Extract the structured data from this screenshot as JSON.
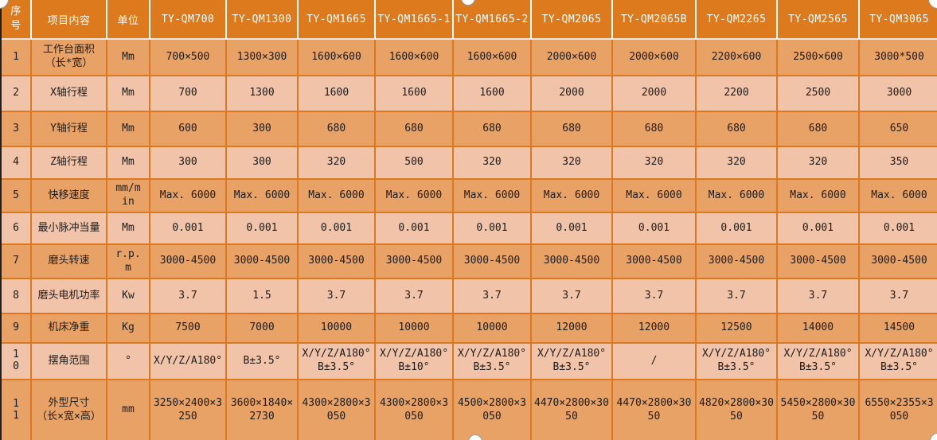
{
  "colors": {
    "header_bg": "#DD7A1E",
    "row_dark_bg": "#E8A266",
    "row_light_bg": "#F1C3A9",
    "grid_line": "#DC7820",
    "header_divider": "#E9E6E0",
    "outer_border": "#1F1F1F",
    "header_text": "#FFFFFF",
    "body_text": "#1C1C1C",
    "handle_fill": "#FFFFFF",
    "handle_border": "#999999"
  },
  "table": {
    "column_headers": {
      "index": "序号",
      "item": "项目内容",
      "unit": "单位"
    },
    "models": [
      "TY-QM700",
      "TY-QM1300",
      "TY-QM1665",
      "TY-QM1665-1",
      "TY-QM1665-2",
      "TY-QM2065",
      "TY-QM2065B",
      "TY-QM2265",
      "TY-QM2565",
      "TY-QM3065"
    ],
    "rows": [
      {
        "no": "1",
        "item": "工作台面积\n（长*宽）",
        "unit": "Mm",
        "values": [
          "700×500",
          "1300×300",
          "1600×600",
          "1600×600",
          "1600×600",
          "2000×600",
          "2000×600",
          "2200×600",
          "2500×600",
          "3000*500"
        ]
      },
      {
        "no": "2",
        "item": "X轴行程",
        "unit": "Mm",
        "values": [
          "700",
          "1300",
          "1600",
          "1600",
          "1600",
          "2000",
          "2000",
          "2200",
          "2500",
          "3000"
        ]
      },
      {
        "no": "3",
        "item": "Y轴行程",
        "unit": "Mm",
        "values": [
          "600",
          "300",
          "680",
          "680",
          "680",
          "680",
          "680",
          "680",
          "680",
          "650"
        ]
      },
      {
        "no": "4",
        "item": "Z轴行程",
        "unit": "Mm",
        "values": [
          "300",
          "300",
          "320",
          "500",
          "320",
          "320",
          "320",
          "320",
          "320",
          "350"
        ]
      },
      {
        "no": "5",
        "item": "快移速度",
        "unit": "mm/min",
        "values": [
          "Max. 6000",
          "Max. 6000",
          "Max. 6000",
          "Max. 6000",
          "Max. 6000",
          "Max. 6000",
          "Max. 6000",
          "Max. 6000",
          "Max. 6000",
          "Max. 6000"
        ]
      },
      {
        "no": "6",
        "item": "最小脉冲当量",
        "unit": "Mm",
        "values": [
          "0.001",
          "0.001",
          "0.001",
          "0.001",
          "0.001",
          "0.001",
          "0.001",
          "0.001",
          "0.001",
          "0.001"
        ]
      },
      {
        "no": "7",
        "item": "磨头转速",
        "unit": "r.p.m",
        "values": [
          "3000-4500",
          "3000-4500",
          "3000-4500",
          "3000-4500",
          "3000-4500",
          "3000-4500",
          "3000-4500",
          "3000-4500",
          "3000-4500",
          "3000-4500"
        ]
      },
      {
        "no": "8",
        "item": "磨头电机功率",
        "unit": "Kw",
        "values": [
          "3.7",
          "1.5",
          "3.7",
          "3.7",
          "3.7",
          "3.7",
          "3.7",
          "3.7",
          "3.7",
          "3.7"
        ]
      },
      {
        "no": "9",
        "item": "机床净重",
        "unit": "Kg",
        "values": [
          "7500",
          "7000",
          "10000",
          "10000",
          "10000",
          "12000",
          "12000",
          "12500",
          "14000",
          "14500"
        ]
      },
      {
        "no": "10",
        "item": "摆角范围",
        "unit": "°",
        "values": [
          "X/Y/Z/A180°",
          "B±3.5°",
          "X/Y/Z/A180°\nB±3.5°",
          "X/Y/Z/A180°\nB±10°",
          "X/Y/Z/A180°\nB±3.5°",
          "X/Y/Z/A180°\nB±3.5°",
          "/",
          "X/Y/Z/A180°\nB±3.5°",
          "X/Y/Z/A180°\nB±3.5°",
          "X/Y/Z/A180°\nB±3.5°"
        ]
      },
      {
        "no": "11",
        "item": "外型尺寸\n（长×宽×高）",
        "unit": "mm",
        "values": [
          "3250×2400×3250",
          "3600×1840×2730",
          "4300×2800×3050",
          "4300×2800×3050",
          "4500×2800×3050",
          "4470×2800×3050",
          "4470×2800×3050",
          "4820×2800×3050",
          "5450×2800×3050",
          "6550×2355×3050"
        ]
      }
    ]
  }
}
